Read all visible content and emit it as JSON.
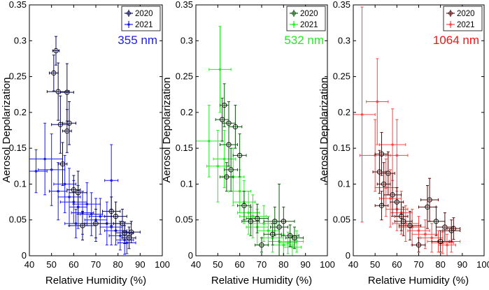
{
  "chart_data": [
    {
      "type": "scatter",
      "panel": "left",
      "wavelength_label": "355 nm",
      "wavelength_color": "#1a1aff",
      "xlabel": "Relative Humidity (%)",
      "ylabel": "Aerosol Depolarization",
      "xlim": [
        40,
        100
      ],
      "ylim": [
        0,
        0.35
      ],
      "xticks": [
        "40",
        "50",
        "60",
        "70",
        "80",
        "90",
        "100"
      ],
      "yticks": [
        "0",
        "0.05",
        "0.1",
        "0.15",
        "0.2",
        "0.25",
        "0.3",
        "0.35"
      ],
      "legend_position": "top-right",
      "series": [
        {
          "name": "2020",
          "color": "#0a0a5a",
          "marker": "open-circle",
          "points": [
            {
              "x": 52,
              "y": 0.286,
              "xerr": 1.5,
              "yerr": 0.02
            },
            {
              "x": 51,
              "y": 0.255,
              "xerr": 2,
              "yerr": 0.025
            },
            {
              "x": 53,
              "y": 0.229,
              "xerr": 5,
              "yerr": 0.04
            },
            {
              "x": 57,
              "y": 0.228,
              "xerr": 3,
              "yerr": 0.04
            },
            {
              "x": 54,
              "y": 0.183,
              "xerr": 4,
              "yerr": 0.04
            },
            {
              "x": 58,
              "y": 0.185,
              "xerr": 3,
              "yerr": 0.03
            },
            {
              "x": 57,
              "y": 0.174,
              "xerr": 2,
              "yerr": 0.03
            },
            {
              "x": 55,
              "y": 0.128,
              "xerr": 2,
              "yerr": 0.03
            },
            {
              "x": 60,
              "y": 0.092,
              "xerr": 3,
              "yerr": 0.02
            },
            {
              "x": 62,
              "y": 0.088,
              "xerr": 4,
              "yerr": 0.03
            },
            {
              "x": 64,
              "y": 0.042,
              "xerr": 6,
              "yerr": 0.02
            },
            {
              "x": 70,
              "y": 0.045,
              "xerr": 5,
              "yerr": 0.02
            },
            {
              "x": 77,
              "y": 0.062,
              "xerr": 4,
              "yerr": 0.02
            },
            {
              "x": 79,
              "y": 0.055,
              "xerr": 5,
              "yerr": 0.02
            },
            {
              "x": 82,
              "y": 0.045,
              "xerr": 4,
              "yerr": 0.02
            },
            {
              "x": 83,
              "y": 0.032,
              "xerr": 4,
              "yerr": 0.015
            },
            {
              "x": 86,
              "y": 0.033,
              "xerr": 4,
              "yerr": 0.015
            },
            {
              "x": 85,
              "y": 0.025,
              "xerr": 3,
              "yerr": 0.015
            }
          ]
        },
        {
          "name": "2021",
          "color": "#1a1aff",
          "marker": "dot",
          "points": [
            {
              "x": 43,
              "y": 0.118,
              "xerr": 5,
              "yerr": 0.03
            },
            {
              "x": 47,
              "y": 0.135,
              "xerr": 8,
              "yerr": 0.05
            },
            {
              "x": 50,
              "y": 0.12,
              "xerr": 6,
              "yerr": 0.05
            },
            {
              "x": 53,
              "y": 0.09,
              "xerr": 4,
              "yerr": 0.04
            },
            {
              "x": 56,
              "y": 0.1,
              "xerr": 5,
              "yerr": 0.04
            },
            {
              "x": 58,
              "y": 0.082,
              "xerr": 5,
              "yerr": 0.04
            },
            {
              "x": 60,
              "y": 0.075,
              "xerr": 6,
              "yerr": 0.03
            },
            {
              "x": 62,
              "y": 0.068,
              "xerr": 4,
              "yerr": 0.03
            },
            {
              "x": 64,
              "y": 0.06,
              "xerr": 5,
              "yerr": 0.03
            },
            {
              "x": 66,
              "y": 0.072,
              "xerr": 6,
              "yerr": 0.03
            },
            {
              "x": 68,
              "y": 0.058,
              "xerr": 5,
              "yerr": 0.03
            },
            {
              "x": 70,
              "y": 0.05,
              "xerr": 5,
              "yerr": 0.03
            },
            {
              "x": 72,
              "y": 0.055,
              "xerr": 5,
              "yerr": 0.025
            },
            {
              "x": 75,
              "y": 0.045,
              "xerr": 6,
              "yerr": 0.03
            },
            {
              "x": 77,
              "y": 0.105,
              "xerr": 3,
              "yerr": 0.05
            },
            {
              "x": 77,
              "y": 0.04,
              "xerr": 5,
              "yerr": 0.025
            },
            {
              "x": 79,
              "y": 0.035,
              "xerr": 5,
              "yerr": 0.02
            },
            {
              "x": 81,
              "y": 0.028,
              "xerr": 5,
              "yerr": 0.02
            },
            {
              "x": 83,
              "y": 0.022,
              "xerr": 4,
              "yerr": 0.02
            },
            {
              "x": 84,
              "y": 0.018,
              "xerr": 4,
              "yerr": 0.015
            },
            {
              "x": 61,
              "y": 0.045,
              "xerr": 5,
              "yerr": 0.02
            }
          ]
        }
      ]
    },
    {
      "type": "scatter",
      "panel": "middle",
      "wavelength_label": "532 nm",
      "wavelength_color": "#22ee22",
      "xlabel": "Relative Humidity (%)",
      "ylabel": "Aerosol Depolarization",
      "xlim": [
        40,
        100
      ],
      "ylim": [
        0,
        0.35
      ],
      "xticks": [
        "40",
        "50",
        "60",
        "70",
        "80",
        "90",
        "100"
      ],
      "yticks": [
        "0",
        "0.05",
        "0.1",
        "0.15",
        "0.2",
        "0.25",
        "0.3",
        "0.35"
      ],
      "legend_position": "top-right",
      "series": [
        {
          "name": "2020",
          "color": "#0a5a0a",
          "marker": "open-circle",
          "points": [
            {
              "x": 53,
              "y": 0.21,
              "xerr": 2,
              "yerr": 0.03
            },
            {
              "x": 52,
              "y": 0.19,
              "xerr": 3,
              "yerr": 0.03
            },
            {
              "x": 55,
              "y": 0.185,
              "xerr": 3,
              "yerr": 0.03
            },
            {
              "x": 58,
              "y": 0.18,
              "xerr": 3,
              "yerr": 0.03
            },
            {
              "x": 55,
              "y": 0.155,
              "xerr": 4,
              "yerr": 0.03
            },
            {
              "x": 60,
              "y": 0.14,
              "xerr": 3,
              "yerr": 0.03
            },
            {
              "x": 56,
              "y": 0.12,
              "xerr": 3,
              "yerr": 0.03
            },
            {
              "x": 54,
              "y": 0.11,
              "xerr": 3,
              "yerr": 0.02
            },
            {
              "x": 62,
              "y": 0.07,
              "xerr": 3,
              "yerr": 0.02
            },
            {
              "x": 65,
              "y": 0.048,
              "xerr": 4,
              "yerr": 0.02
            },
            {
              "x": 68,
              "y": 0.052,
              "xerr": 5,
              "yerr": 0.02
            },
            {
              "x": 70,
              "y": 0.015,
              "xerr": 3,
              "yerr": 0.01
            },
            {
              "x": 76,
              "y": 0.048,
              "xerr": 5,
              "yerr": 0.02
            },
            {
              "x": 78,
              "y": 0.04,
              "xerr": 4,
              "yerr": 0.06
            },
            {
              "x": 80,
              "y": 0.048,
              "xerr": 5,
              "yerr": 0.02
            },
            {
              "x": 83,
              "y": 0.028,
              "xerr": 4,
              "yerr": 0.015
            },
            {
              "x": 85,
              "y": 0.025,
              "xerr": 4,
              "yerr": 0.015
            },
            {
              "x": 75,
              "y": 0.03,
              "xerr": 4,
              "yerr": 0.015
            }
          ]
        },
        {
          "name": "2021",
          "color": "#22ee22",
          "marker": "dot",
          "points": [
            {
              "x": 51,
              "y": 0.26,
              "xerr": 5,
              "yerr": 0.06
            },
            {
              "x": 46,
              "y": 0.16,
              "xerr": 6,
              "yerr": 0.05
            },
            {
              "x": 50,
              "y": 0.125,
              "xerr": 5,
              "yerr": 0.05
            },
            {
              "x": 53,
              "y": 0.135,
              "xerr": 5,
              "yerr": 0.04
            },
            {
              "x": 57,
              "y": 0.11,
              "xerr": 5,
              "yerr": 0.04
            },
            {
              "x": 60,
              "y": 0.09,
              "xerr": 5,
              "yerr": 0.03
            },
            {
              "x": 62,
              "y": 0.075,
              "xerr": 5,
              "yerr": 0.03
            },
            {
              "x": 64,
              "y": 0.06,
              "xerr": 5,
              "yerr": 0.03
            },
            {
              "x": 66,
              "y": 0.055,
              "xerr": 6,
              "yerr": 0.03
            },
            {
              "x": 68,
              "y": 0.04,
              "xerr": 5,
              "yerr": 0.025
            },
            {
              "x": 71,
              "y": 0.045,
              "xerr": 6,
              "yerr": 0.025
            },
            {
              "x": 73,
              "y": 0.035,
              "xerr": 5,
              "yerr": 0.02
            },
            {
              "x": 75,
              "y": 0.025,
              "xerr": 5,
              "yerr": 0.02
            },
            {
              "x": 78,
              "y": 0.02,
              "xerr": 5,
              "yerr": 0.02
            },
            {
              "x": 80,
              "y": 0.015,
              "xerr": 5,
              "yerr": 0.015
            },
            {
              "x": 82,
              "y": 0.018,
              "xerr": 4,
              "yerr": 0.015
            },
            {
              "x": 84,
              "y": 0.012,
              "xerr": 4,
              "yerr": 0.015
            },
            {
              "x": 86,
              "y": 0.02,
              "xerr": 3,
              "yerr": 0.015
            }
          ]
        }
      ]
    },
    {
      "type": "scatter",
      "panel": "right",
      "wavelength_label": "1064 nm",
      "wavelength_color": "#ff1111",
      "xlabel": "Relative Humidity (%)",
      "ylabel": "Aerosol Depolarization",
      "xlim": [
        40,
        100
      ],
      "ylim": [
        0,
        0.35
      ],
      "xticks": [
        "40",
        "50",
        "60",
        "70",
        "80",
        "90",
        "100"
      ],
      "yticks": [
        "0",
        "0.05",
        "0.1",
        "0.15",
        "0.2",
        "0.25",
        "0.3",
        "0.35"
      ],
      "legend_position": "top-right",
      "series": [
        {
          "name": "2020",
          "color": "#5a0a0a",
          "marker": "open-circle",
          "points": [
            {
              "x": 53,
              "y": 0.142,
              "xerr": 3,
              "yerr": 0.03
            },
            {
              "x": 52,
              "y": 0.117,
              "xerr": 3,
              "yerr": 0.03
            },
            {
              "x": 56,
              "y": 0.115,
              "xerr": 3,
              "yerr": 0.03
            },
            {
              "x": 54,
              "y": 0.1,
              "xerr": 3,
              "yerr": 0.03
            },
            {
              "x": 58,
              "y": 0.085,
              "xerr": 4,
              "yerr": 0.03
            },
            {
              "x": 60,
              "y": 0.075,
              "xerr": 3,
              "yerr": 0.02
            },
            {
              "x": 53,
              "y": 0.07,
              "xerr": 3,
              "yerr": 0.02
            },
            {
              "x": 62,
              "y": 0.055,
              "xerr": 3,
              "yerr": 0.02
            },
            {
              "x": 63,
              "y": 0.048,
              "xerr": 4,
              "yerr": 0.02
            },
            {
              "x": 66,
              "y": 0.042,
              "xerr": 5,
              "yerr": 0.02
            },
            {
              "x": 75,
              "y": 0.078,
              "xerr": 4,
              "yerr": 0.03
            },
            {
              "x": 74,
              "y": 0.068,
              "xerr": 4,
              "yerr": 0.03
            },
            {
              "x": 78,
              "y": 0.048,
              "xerr": 4,
              "yerr": 0.02
            },
            {
              "x": 70,
              "y": 0.015,
              "xerr": 3,
              "yerr": 0.01
            },
            {
              "x": 82,
              "y": 0.04,
              "xerr": 4,
              "yerr": 0.02
            },
            {
              "x": 85,
              "y": 0.035,
              "xerr": 4,
              "yerr": 0.015
            },
            {
              "x": 86,
              "y": 0.038,
              "xerr": 3,
              "yerr": 0.015
            },
            {
              "x": 80,
              "y": 0.02,
              "xerr": 4,
              "yerr": 0.015
            }
          ]
        },
        {
          "name": "2021",
          "color": "#ff4444",
          "marker": "dot",
          "points": [
            {
              "x": 44,
              "y": 0.197,
              "xerr": 6,
              "yerr": 0.15
            },
            {
              "x": 51,
              "y": 0.215,
              "xerr": 5,
              "yerr": 0.06
            },
            {
              "x": 50,
              "y": 0.14,
              "xerr": 7,
              "yerr": 0.05
            },
            {
              "x": 58,
              "y": 0.155,
              "xerr": 6,
              "yerr": 0.05
            },
            {
              "x": 60,
              "y": 0.14,
              "xerr": 5,
              "yerr": 0.05
            },
            {
              "x": 55,
              "y": 0.095,
              "xerr": 5,
              "yerr": 0.04
            },
            {
              "x": 57,
              "y": 0.08,
              "xerr": 5,
              "yerr": 0.04
            },
            {
              "x": 60,
              "y": 0.065,
              "xerr": 5,
              "yerr": 0.03
            },
            {
              "x": 62,
              "y": 0.06,
              "xerr": 5,
              "yerr": 0.03
            },
            {
              "x": 64,
              "y": 0.045,
              "xerr": 6,
              "yerr": 0.025
            },
            {
              "x": 67,
              "y": 0.04,
              "xerr": 6,
              "yerr": 0.025
            },
            {
              "x": 70,
              "y": 0.035,
              "xerr": 5,
              "yerr": 0.02
            },
            {
              "x": 73,
              "y": 0.03,
              "xerr": 6,
              "yerr": 0.02
            },
            {
              "x": 76,
              "y": 0.025,
              "xerr": 5,
              "yerr": 0.02
            },
            {
              "x": 79,
              "y": 0.02,
              "xerr": 5,
              "yerr": 0.015
            },
            {
              "x": 81,
              "y": 0.018,
              "xerr": 5,
              "yerr": 0.015
            },
            {
              "x": 83,
              "y": 0.015,
              "xerr": 4,
              "yerr": 0.015
            },
            {
              "x": 85,
              "y": 0.02,
              "xerr": 4,
              "yerr": 0.015
            }
          ]
        }
      ]
    }
  ]
}
